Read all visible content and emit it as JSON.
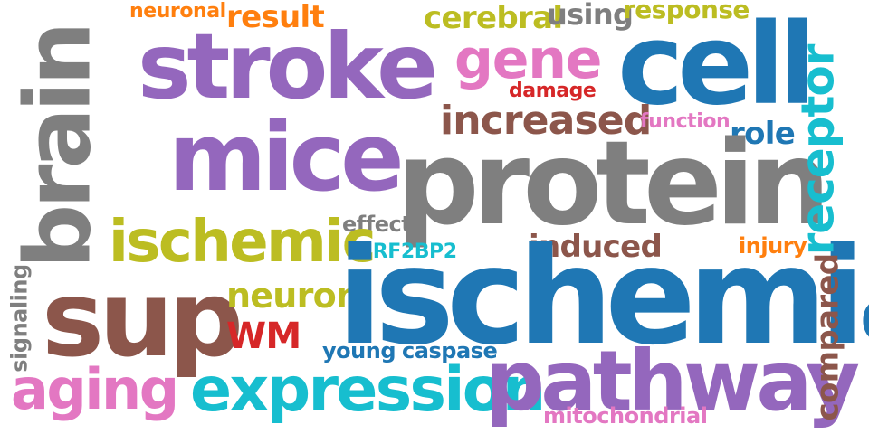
{
  "words": {
    "neuronal": {
      "text": "neuronal",
      "color": "#ff7f0e"
    },
    "result": {
      "text": "result",
      "color": "#ff7f0e"
    },
    "cerebral": {
      "text": "cerebral",
      "color": "#bcbd22"
    },
    "using": {
      "text": "using",
      "color": "#7f7f7f"
    },
    "response": {
      "text": "response",
      "color": "#bcbd22"
    },
    "brain": {
      "text": "brain",
      "color": "#7f7f7f"
    },
    "stroke": {
      "text": "stroke",
      "color": "#9467bd"
    },
    "gene": {
      "text": "gene",
      "color": "#e377c2"
    },
    "cell": {
      "text": "cell",
      "color": "#1f77b4"
    },
    "receptor": {
      "text": "receptor",
      "color": "#17becf"
    },
    "damage": {
      "text": "damage",
      "color": "#d62728"
    },
    "increased": {
      "text": "increased",
      "color": "#8c564b"
    },
    "function": {
      "text": "function",
      "color": "#e377c2"
    },
    "role": {
      "text": "role",
      "color": "#1f77b4"
    },
    "mice": {
      "text": "mice",
      "color": "#9467bd"
    },
    "protein": {
      "text": "protein",
      "color": "#7f7f7f"
    },
    "effect": {
      "text": "effect",
      "color": "#7f7f7f"
    },
    "ischemic": {
      "text": "ischemic",
      "color": "#bcbd22"
    },
    "irf2bp2": {
      "text": "IRF2BP2",
      "color": "#17becf"
    },
    "induced": {
      "text": "induced",
      "color": "#8c564b"
    },
    "injury": {
      "text": "injury",
      "color": "#ff7f0e"
    },
    "signaling": {
      "text": "signaling",
      "color": "#7f7f7f"
    },
    "sup": {
      "text": "sup",
      "color": "#8c564b"
    },
    "neuron": {
      "text": "neuron",
      "color": "#bcbd22"
    },
    "ischemia": {
      "text": "ischemia",
      "color": "#1f77b4"
    },
    "compared": {
      "text": "compared",
      "color": "#8c564b"
    },
    "wm": {
      "text": "WM",
      "color": "#d62728"
    },
    "young": {
      "text": "young",
      "color": "#1f77b4"
    },
    "caspase": {
      "text": "caspase",
      "color": "#1f77b4"
    },
    "aging": {
      "text": "aging",
      "color": "#e377c2"
    },
    "expression": {
      "text": "expression",
      "color": "#17becf"
    },
    "pathway": {
      "text": "pathway",
      "color": "#9467bd"
    },
    "mitochondrial": {
      "text": "mitochondrial",
      "color": "#e377c2"
    }
  }
}
